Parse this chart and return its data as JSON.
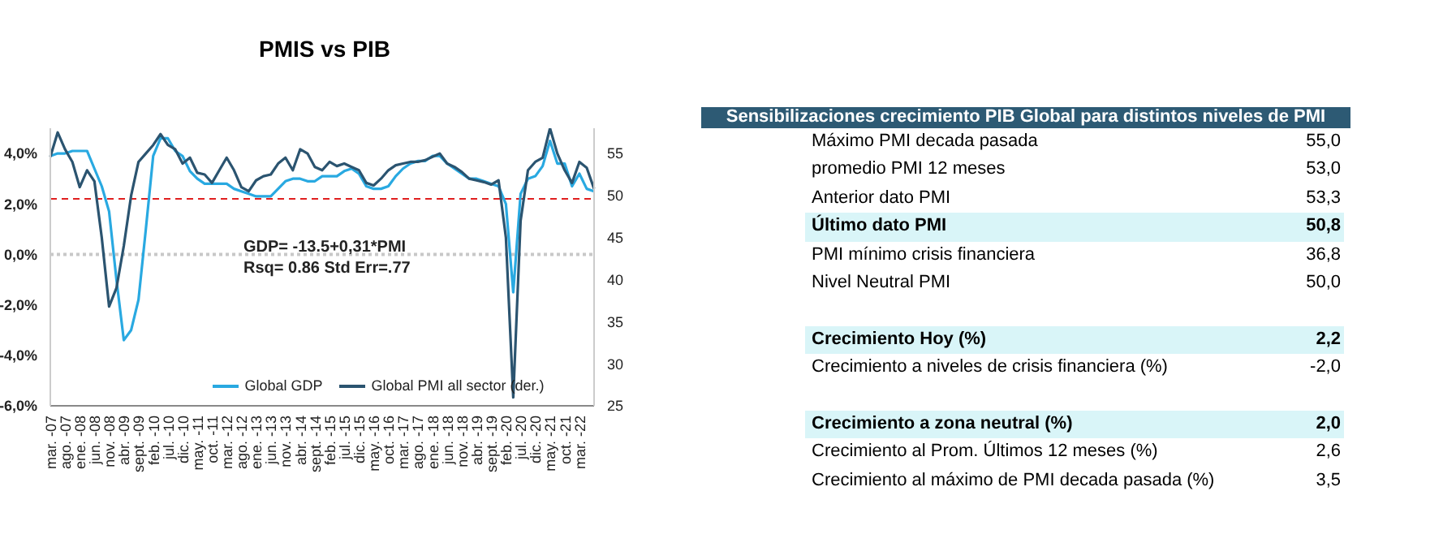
{
  "chart_data": [
    {
      "type": "line",
      "title": "PMIS vs PIB",
      "categories": [
        "mar. -07",
        null,
        "ago. -07",
        null,
        "ene. -08",
        null,
        "jun. -08",
        null,
        "nov. -08",
        null,
        "abr. -09",
        null,
        "sept. -09",
        null,
        "feb. -10",
        null,
        "jul. -10",
        null,
        "dic. -10",
        null,
        "may. -11",
        null,
        "oct. -11",
        null,
        "mar. -12",
        null,
        "ago. -12",
        null,
        "ene. -13",
        null,
        "jun. -13",
        null,
        "nov. -13",
        null,
        "abr. -14",
        null,
        "sept. -14",
        null,
        "feb. -15",
        null,
        "jul. -15",
        null,
        "dic. -15",
        null,
        "may. -16",
        null,
        "oct. -16",
        null,
        "mar. -17",
        null,
        "ago. -17",
        null,
        "ene. -18",
        null,
        "jun. -18",
        null,
        "nov. -18",
        null,
        "abr. -19",
        null,
        "sept. -19",
        null,
        "feb. -20",
        null,
        "jul. -20",
        null,
        "dic. -20",
        null,
        "may. -21",
        null,
        "oct. -21",
        null,
        "mar. -22",
        null,
        null
      ],
      "series": [
        {
          "name": "Global GDP",
          "color": "#29a9e1",
          "values": [
            3.9,
            4.0,
            4.0,
            4.1,
            4.1,
            4.1,
            3.4,
            2.7,
            1.7,
            -1.0,
            -3.4,
            -3.0,
            -1.8,
            1.0,
            3.9,
            4.6,
            4.6,
            4.1,
            3.9,
            3.3,
            3.0,
            2.8,
            2.8,
            2.8,
            2.8,
            2.6,
            2.5,
            2.4,
            2.3,
            2.3,
            2.3,
            2.6,
            2.9,
            3.0,
            3.0,
            2.9,
            2.9,
            3.1,
            3.1,
            3.1,
            3.3,
            3.4,
            3.2,
            2.7,
            2.6,
            2.6,
            2.7,
            3.1,
            3.4,
            3.6,
            3.7,
            3.7,
            3.9,
            3.9,
            3.6,
            3.4,
            3.2,
            3.0,
            3.0,
            2.9,
            2.8,
            2.7,
            2.0,
            -1.5,
            2.4,
            3.0,
            3.1,
            3.5,
            4.5,
            3.6,
            3.6,
            2.7,
            3.2,
            2.6,
            2.5
          ]
        },
        {
          "name": "Global PMI all sector (der.)",
          "color": "#2b5470",
          "axis": "y2",
          "values": [
            54.6,
            57.5,
            55.5,
            54.0,
            51.0,
            53.0,
            51.7,
            45.0,
            36.8,
            39.0,
            44.0,
            50.0,
            54.0,
            55.0,
            56.0,
            57.3,
            56.0,
            55.5,
            53.8,
            54.5,
            52.7,
            52.5,
            51.5,
            53.0,
            54.5,
            53.0,
            51.0,
            50.5,
            51.8,
            52.3,
            52.5,
            53.8,
            54.5,
            53.0,
            55.5,
            55.0,
            53.4,
            53.0,
            54.0,
            53.5,
            53.8,
            53.4,
            53.0,
            51.5,
            51.2,
            52.0,
            53.0,
            53.6,
            53.8,
            54.0,
            54.0,
            54.2,
            54.6,
            55.0,
            53.8,
            53.4,
            52.8,
            52.0,
            51.8,
            51.6,
            51.3,
            51.8,
            45.0,
            26.0,
            47.0,
            53.0,
            54.0,
            54.5,
            58.0,
            55.0,
            53.0,
            51.5,
            54.0,
            53.3,
            50.8
          ]
        }
      ],
      "ylim": [
        -6,
        5
      ],
      "yticks": [
        {
          "value": -6,
          "label": "-6,0%"
        },
        {
          "value": -4,
          "label": "-4,0%"
        },
        {
          "value": -2,
          "label": "-2,0%"
        },
        {
          "value": 0,
          "label": "0,0%"
        },
        {
          "value": 2,
          "label": "2,0%"
        },
        {
          "value": 4,
          "label": "4,0%"
        }
      ],
      "y2lim": [
        25,
        58
      ],
      "y2ticks": [
        25,
        30,
        35,
        40,
        45,
        50,
        55
      ],
      "ref_lines": [
        {
          "axis": "y",
          "value": 0,
          "color": "#c8c8c8",
          "line_style": "dotted"
        },
        {
          "axis": "y",
          "value": 2.2,
          "color": "#e02020",
          "line_style": "dashed"
        }
      ],
      "annotations": [
        "GDP= -13.5+0,31*PMI",
        "Rsq= 0.86 Std Err=.77"
      ],
      "legend": "bottom",
      "marker": "none",
      "line_style": "solid",
      "grid": false
    },
    {
      "type": "other",
      "title": "Sensibilizaciones crecimiento PIB Global para distintos niveles de PMI",
      "color": "#2d5a74",
      "categories": [
        "Máximo PMI decada pasada",
        "promedio PMI 12 meses",
        "Anterior dato PMI",
        "Último dato PMI",
        "PMI mínimo crisis financiera",
        "Nivel Neutral PMI",
        null,
        "Crecimiento Hoy (%)",
        "Crecimiento a niveles de crisis financiera (%)",
        null,
        "Crecimiento a zona neutral (%)",
        "Crecimiento al Prom. Últimos 12 meses (%)",
        "Crecimiento al máximo de PMI  decada pasada (%)"
      ],
      "value_labels": [
        "55,0",
        "53,0",
        "53,3",
        "50,8",
        "36,8",
        "50,0",
        null,
        "2,2",
        "-2,0",
        null,
        "2,0",
        "2,6",
        "3,5"
      ],
      "colors": [
        null,
        null,
        null,
        "#d9f5f8",
        null,
        null,
        null,
        "#d9f5f8",
        null,
        null,
        "#d9f5f8",
        null,
        null
      ]
    }
  ]
}
